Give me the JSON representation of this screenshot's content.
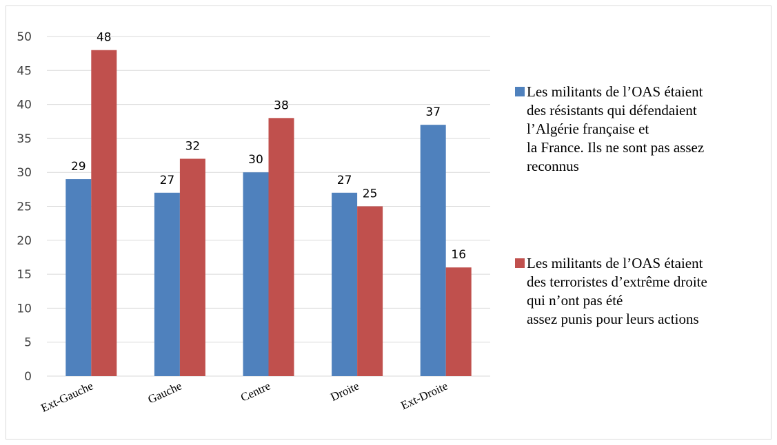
{
  "colors": {
    "series_1": "#4f81bd",
    "series_2": "#c0504d",
    "grid": "#d9d9d9",
    "frame": "#d9d9d9"
  },
  "legend": {
    "items": [
      {
        "lines": [
          "Les militants de l’OAS étaient",
          "des résistants qui défendaient",
          "l’Algérie française et",
          "la France. Ils ne sont pas assez",
          "reconnus"
        ]
      },
      {
        "lines": [
          "Les militants de l’OAS étaient",
          "des terroristes d’extrême droite",
          "qui n’ont pas été",
          "assez punis pour leurs actions"
        ]
      }
    ]
  },
  "chart_data": {
    "type": "bar",
    "categories": [
      "Ext-Gauche",
      "Gauche",
      "Centre",
      "Droite",
      "Ext-Droite"
    ],
    "series": [
      {
        "name": "Les militants de l’OAS étaient des résistants qui défendaient l’Algérie française et la France. Ils ne sont pas assez reconnus",
        "values": [
          29,
          27,
          30,
          27,
          37
        ]
      },
      {
        "name": "Les militants de l’OAS étaient des terroristes d’extrême droite qui n’ont pas été assez punis pour leurs actions",
        "values": [
          48,
          32,
          38,
          25,
          16
        ]
      }
    ],
    "ylim": [
      0,
      50
    ],
    "yticks": [
      0,
      5,
      10,
      15,
      20,
      25,
      30,
      35,
      40,
      45,
      50
    ],
    "data_labels": true,
    "grid": true,
    "legend_position": "right",
    "title": "",
    "xlabel": "",
    "ylabel": ""
  }
}
